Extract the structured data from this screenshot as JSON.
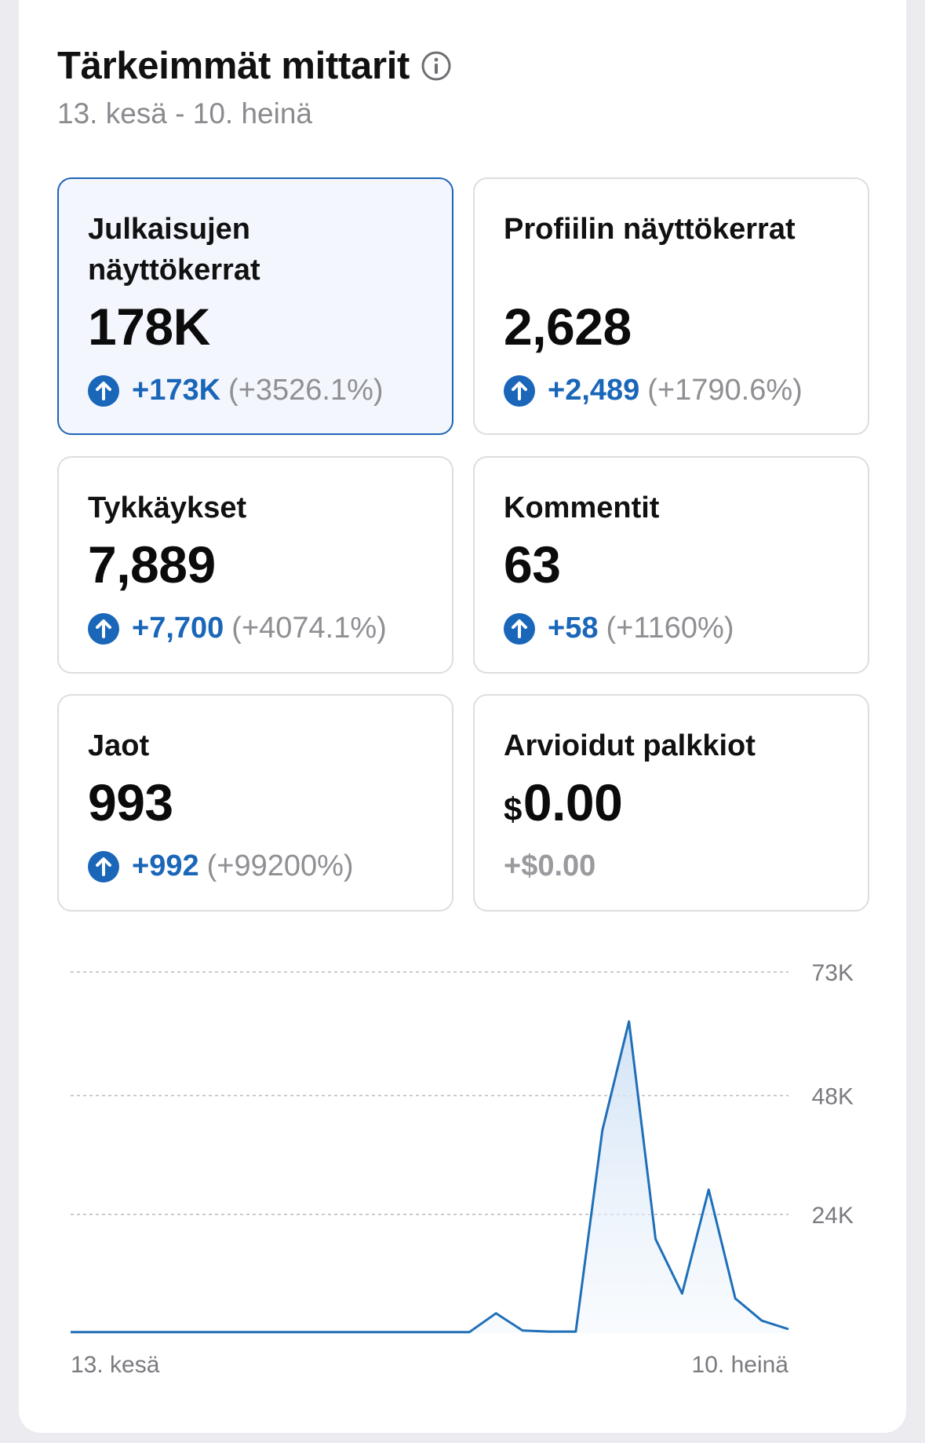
{
  "header": {
    "title": "Tärkeimmät mittarit",
    "date_range": "13. kesä - 10. heinä",
    "info_icon": "info-circle-icon"
  },
  "cards": [
    {
      "label": "Julkaisujen näyttökerrat",
      "value": "178K",
      "delta": "+173K",
      "pct": "(+3526.1%)",
      "selected": true
    },
    {
      "label": "Profiilin näyttökerrat",
      "value": "2,628",
      "delta": "+2,489",
      "pct": "(+1790.6%)",
      "selected": false
    },
    {
      "label": "Tykkäykset",
      "value": "7,889",
      "delta": "+7,700",
      "pct": "(+4074.1%)",
      "selected": false
    },
    {
      "label": "Kommentit",
      "value": "63",
      "delta": "+58",
      "pct": "(+1160%)",
      "selected": false
    },
    {
      "label": "Jaot",
      "value": "993",
      "delta": "+992",
      "pct": "(+99200%)",
      "selected": false
    },
    {
      "label": "Arvioidut palkkiot",
      "currency": "$",
      "value": "0.00",
      "delta": "+$0.00",
      "selected": false
    }
  ],
  "colors": {
    "accent": "#1a66b8",
    "selected_border": "#1f63b6",
    "line": "#1f6fb8",
    "area_top": "#cfe1f5"
  },
  "chart_data": {
    "type": "area",
    "x_start_label": "13. kesä",
    "x_end_label": "10. heinä",
    "y_tick_labels": [
      "24K",
      "48K",
      "73K"
    ],
    "y_ticks": [
      24000,
      48000,
      73000
    ],
    "ylim": [
      0,
      73000
    ],
    "grid": true,
    "series": [
      {
        "values": [
          200,
          200,
          200,
          200,
          200,
          200,
          200,
          200,
          200,
          200,
          200,
          200,
          200,
          200,
          200,
          200,
          4000,
          500,
          300,
          300,
          41000,
          63000,
          19000,
          8000,
          29000,
          7000,
          2500,
          800
        ]
      }
    ]
  }
}
